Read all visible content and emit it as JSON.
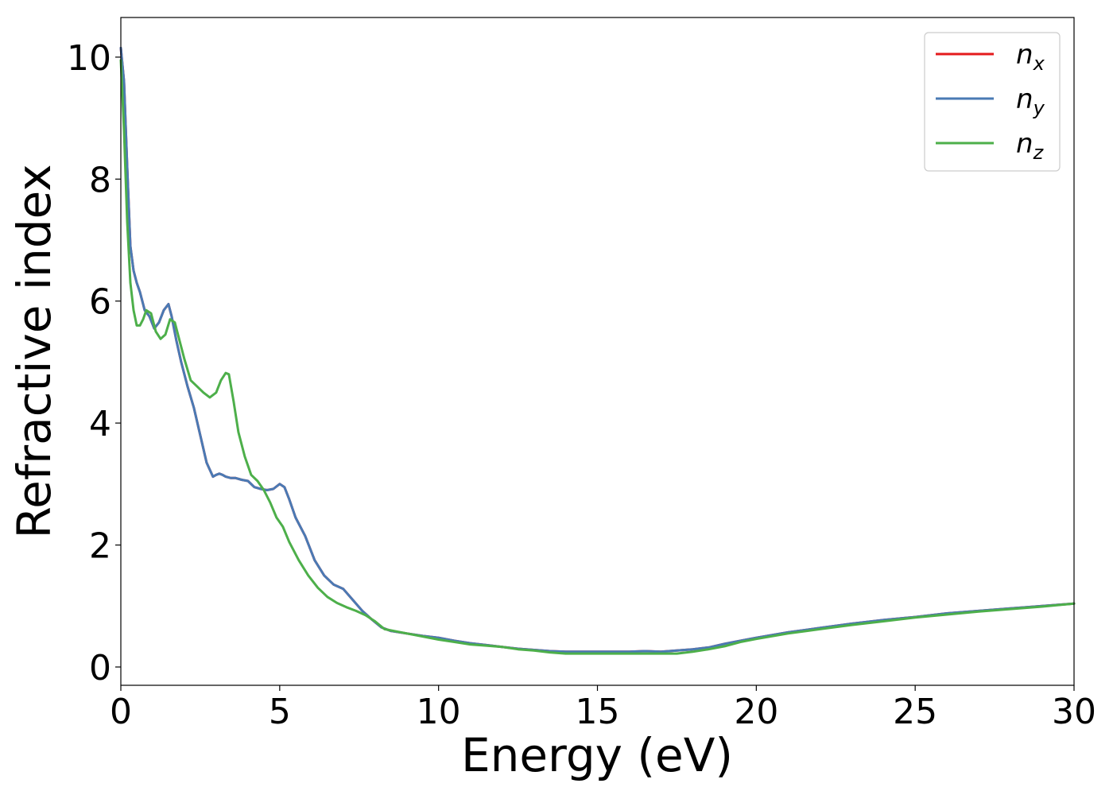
{
  "chart_data": {
    "type": "line",
    "title": "",
    "xlabel": "Energy (eV)",
    "ylabel": "Refractive index",
    "xlim": [
      0,
      30
    ],
    "ylim": [
      -0.3,
      10.65
    ],
    "xticks": [
      0,
      5,
      10,
      15,
      20,
      25,
      30
    ],
    "yticks": [
      0,
      2,
      4,
      6,
      8,
      10
    ],
    "xtick_labels": [
      "0",
      "5",
      "10",
      "15",
      "20",
      "25",
      "30"
    ],
    "ytick_labels": [
      "0",
      "2",
      "4",
      "6",
      "8",
      "10"
    ],
    "grid": false,
    "legend_position": "top-right",
    "series": [
      {
        "name": "n_x",
        "label_main": "n",
        "label_sub": "x",
        "color": "#e41a1c",
        "x": [
          0,
          0.1,
          0.2,
          0.3,
          0.4,
          0.5,
          0.6,
          0.75,
          0.9,
          1.05,
          1.2,
          1.35,
          1.5,
          1.6,
          1.75,
          1.9,
          2.1,
          2.3,
          2.5,
          2.7,
          2.9,
          3.0,
          3.1,
          3.2,
          3.3,
          3.45,
          3.6,
          3.8,
          4.0,
          4.2,
          4.4,
          4.6,
          4.8,
          5.0,
          5.15,
          5.3,
          5.5,
          5.8,
          6.1,
          6.4,
          6.7,
          7.0,
          7.3,
          7.6,
          7.9,
          8.2,
          8.5,
          9.0,
          9.5,
          10,
          10.5,
          11,
          11.5,
          12,
          12.5,
          13,
          13.5,
          14,
          14.5,
          15,
          15.5,
          16,
          16.5,
          17,
          17.5,
          18,
          18.5,
          19,
          19.5,
          20,
          21,
          22,
          23,
          24,
          25,
          26,
          27,
          28,
          29,
          30
        ],
        "y": [
          10.15,
          9.6,
          8.2,
          6.9,
          6.5,
          6.3,
          6.15,
          5.85,
          5.75,
          5.55,
          5.65,
          5.85,
          5.95,
          5.75,
          5.35,
          5.0,
          4.6,
          4.25,
          3.8,
          3.35,
          3.12,
          3.15,
          3.17,
          3.15,
          3.12,
          3.1,
          3.1,
          3.07,
          3.05,
          2.95,
          2.92,
          2.9,
          2.92,
          3.0,
          2.95,
          2.75,
          2.45,
          2.15,
          1.75,
          1.5,
          1.35,
          1.28,
          1.1,
          0.92,
          0.78,
          0.65,
          0.59,
          0.55,
          0.51,
          0.48,
          0.43,
          0.39,
          0.36,
          0.33,
          0.3,
          0.28,
          0.26,
          0.25,
          0.25,
          0.25,
          0.25,
          0.25,
          0.26,
          0.25,
          0.27,
          0.29,
          0.32,
          0.38,
          0.43,
          0.48,
          0.57,
          0.64,
          0.71,
          0.77,
          0.82,
          0.88,
          0.92,
          0.96,
          1.0,
          1.04
        ]
      },
      {
        "name": "n_y",
        "label_main": "n",
        "label_sub": "y",
        "color": "#4a7ab4",
        "x": [
          0,
          0.1,
          0.2,
          0.3,
          0.4,
          0.5,
          0.6,
          0.75,
          0.9,
          1.05,
          1.2,
          1.35,
          1.5,
          1.6,
          1.75,
          1.9,
          2.1,
          2.3,
          2.5,
          2.7,
          2.9,
          3.0,
          3.1,
          3.2,
          3.3,
          3.45,
          3.6,
          3.8,
          4.0,
          4.2,
          4.4,
          4.6,
          4.8,
          5.0,
          5.15,
          5.3,
          5.5,
          5.8,
          6.1,
          6.4,
          6.7,
          7.0,
          7.3,
          7.6,
          7.9,
          8.2,
          8.5,
          9.0,
          9.5,
          10,
          10.5,
          11,
          11.5,
          12,
          12.5,
          13,
          13.5,
          14,
          14.5,
          15,
          15.5,
          16,
          16.5,
          17,
          17.5,
          18,
          18.5,
          19,
          19.5,
          20,
          21,
          22,
          23,
          24,
          25,
          26,
          27,
          28,
          29,
          30
        ],
        "y": [
          10.15,
          9.6,
          8.2,
          6.9,
          6.5,
          6.3,
          6.15,
          5.85,
          5.75,
          5.55,
          5.65,
          5.85,
          5.95,
          5.75,
          5.35,
          5.0,
          4.6,
          4.25,
          3.8,
          3.35,
          3.12,
          3.15,
          3.17,
          3.15,
          3.12,
          3.1,
          3.1,
          3.07,
          3.05,
          2.95,
          2.92,
          2.9,
          2.92,
          3.0,
          2.95,
          2.75,
          2.45,
          2.15,
          1.75,
          1.5,
          1.35,
          1.28,
          1.1,
          0.92,
          0.78,
          0.65,
          0.59,
          0.55,
          0.51,
          0.48,
          0.43,
          0.39,
          0.36,
          0.33,
          0.3,
          0.28,
          0.26,
          0.25,
          0.25,
          0.25,
          0.25,
          0.25,
          0.26,
          0.25,
          0.27,
          0.29,
          0.32,
          0.38,
          0.43,
          0.48,
          0.57,
          0.64,
          0.71,
          0.77,
          0.82,
          0.88,
          0.92,
          0.96,
          1.0,
          1.04
        ]
      },
      {
        "name": "n_z",
        "label_main": "n",
        "label_sub": "z",
        "color": "#4daf4a",
        "x": [
          0,
          0.1,
          0.2,
          0.3,
          0.4,
          0.5,
          0.6,
          0.7,
          0.8,
          0.95,
          1.1,
          1.25,
          1.4,
          1.55,
          1.7,
          1.85,
          2.0,
          2.2,
          2.4,
          2.6,
          2.8,
          3.0,
          3.15,
          3.3,
          3.4,
          3.55,
          3.7,
          3.9,
          4.1,
          4.3,
          4.5,
          4.7,
          4.9,
          5.1,
          5.3,
          5.6,
          5.9,
          6.2,
          6.5,
          6.8,
          7.1,
          7.4,
          7.7,
          8.0,
          8.3,
          8.6,
          9.0,
          9.5,
          10,
          10.5,
          11,
          11.5,
          12,
          12.5,
          13,
          13.5,
          14,
          14.5,
          15,
          15.5,
          16,
          16.5,
          17,
          17.5,
          18,
          18.5,
          19,
          19.5,
          20,
          21,
          22,
          23,
          24,
          25,
          26,
          27,
          28,
          29,
          30
        ],
        "y": [
          9.95,
          8.8,
          7.3,
          6.3,
          5.85,
          5.6,
          5.6,
          5.7,
          5.85,
          5.8,
          5.5,
          5.38,
          5.45,
          5.7,
          5.65,
          5.35,
          5.05,
          4.7,
          4.6,
          4.5,
          4.42,
          4.5,
          4.7,
          4.82,
          4.8,
          4.35,
          3.85,
          3.45,
          3.15,
          3.05,
          2.9,
          2.7,
          2.45,
          2.3,
          2.05,
          1.75,
          1.5,
          1.3,
          1.15,
          1.05,
          0.98,
          0.92,
          0.85,
          0.75,
          0.62,
          0.59,
          0.55,
          0.5,
          0.45,
          0.41,
          0.37,
          0.35,
          0.33,
          0.29,
          0.27,
          0.24,
          0.22,
          0.22,
          0.22,
          0.22,
          0.22,
          0.22,
          0.22,
          0.22,
          0.25,
          0.29,
          0.34,
          0.41,
          0.46,
          0.55,
          0.62,
          0.69,
          0.75,
          0.81,
          0.86,
          0.91,
          0.95,
          0.99,
          1.04
        ]
      }
    ]
  }
}
